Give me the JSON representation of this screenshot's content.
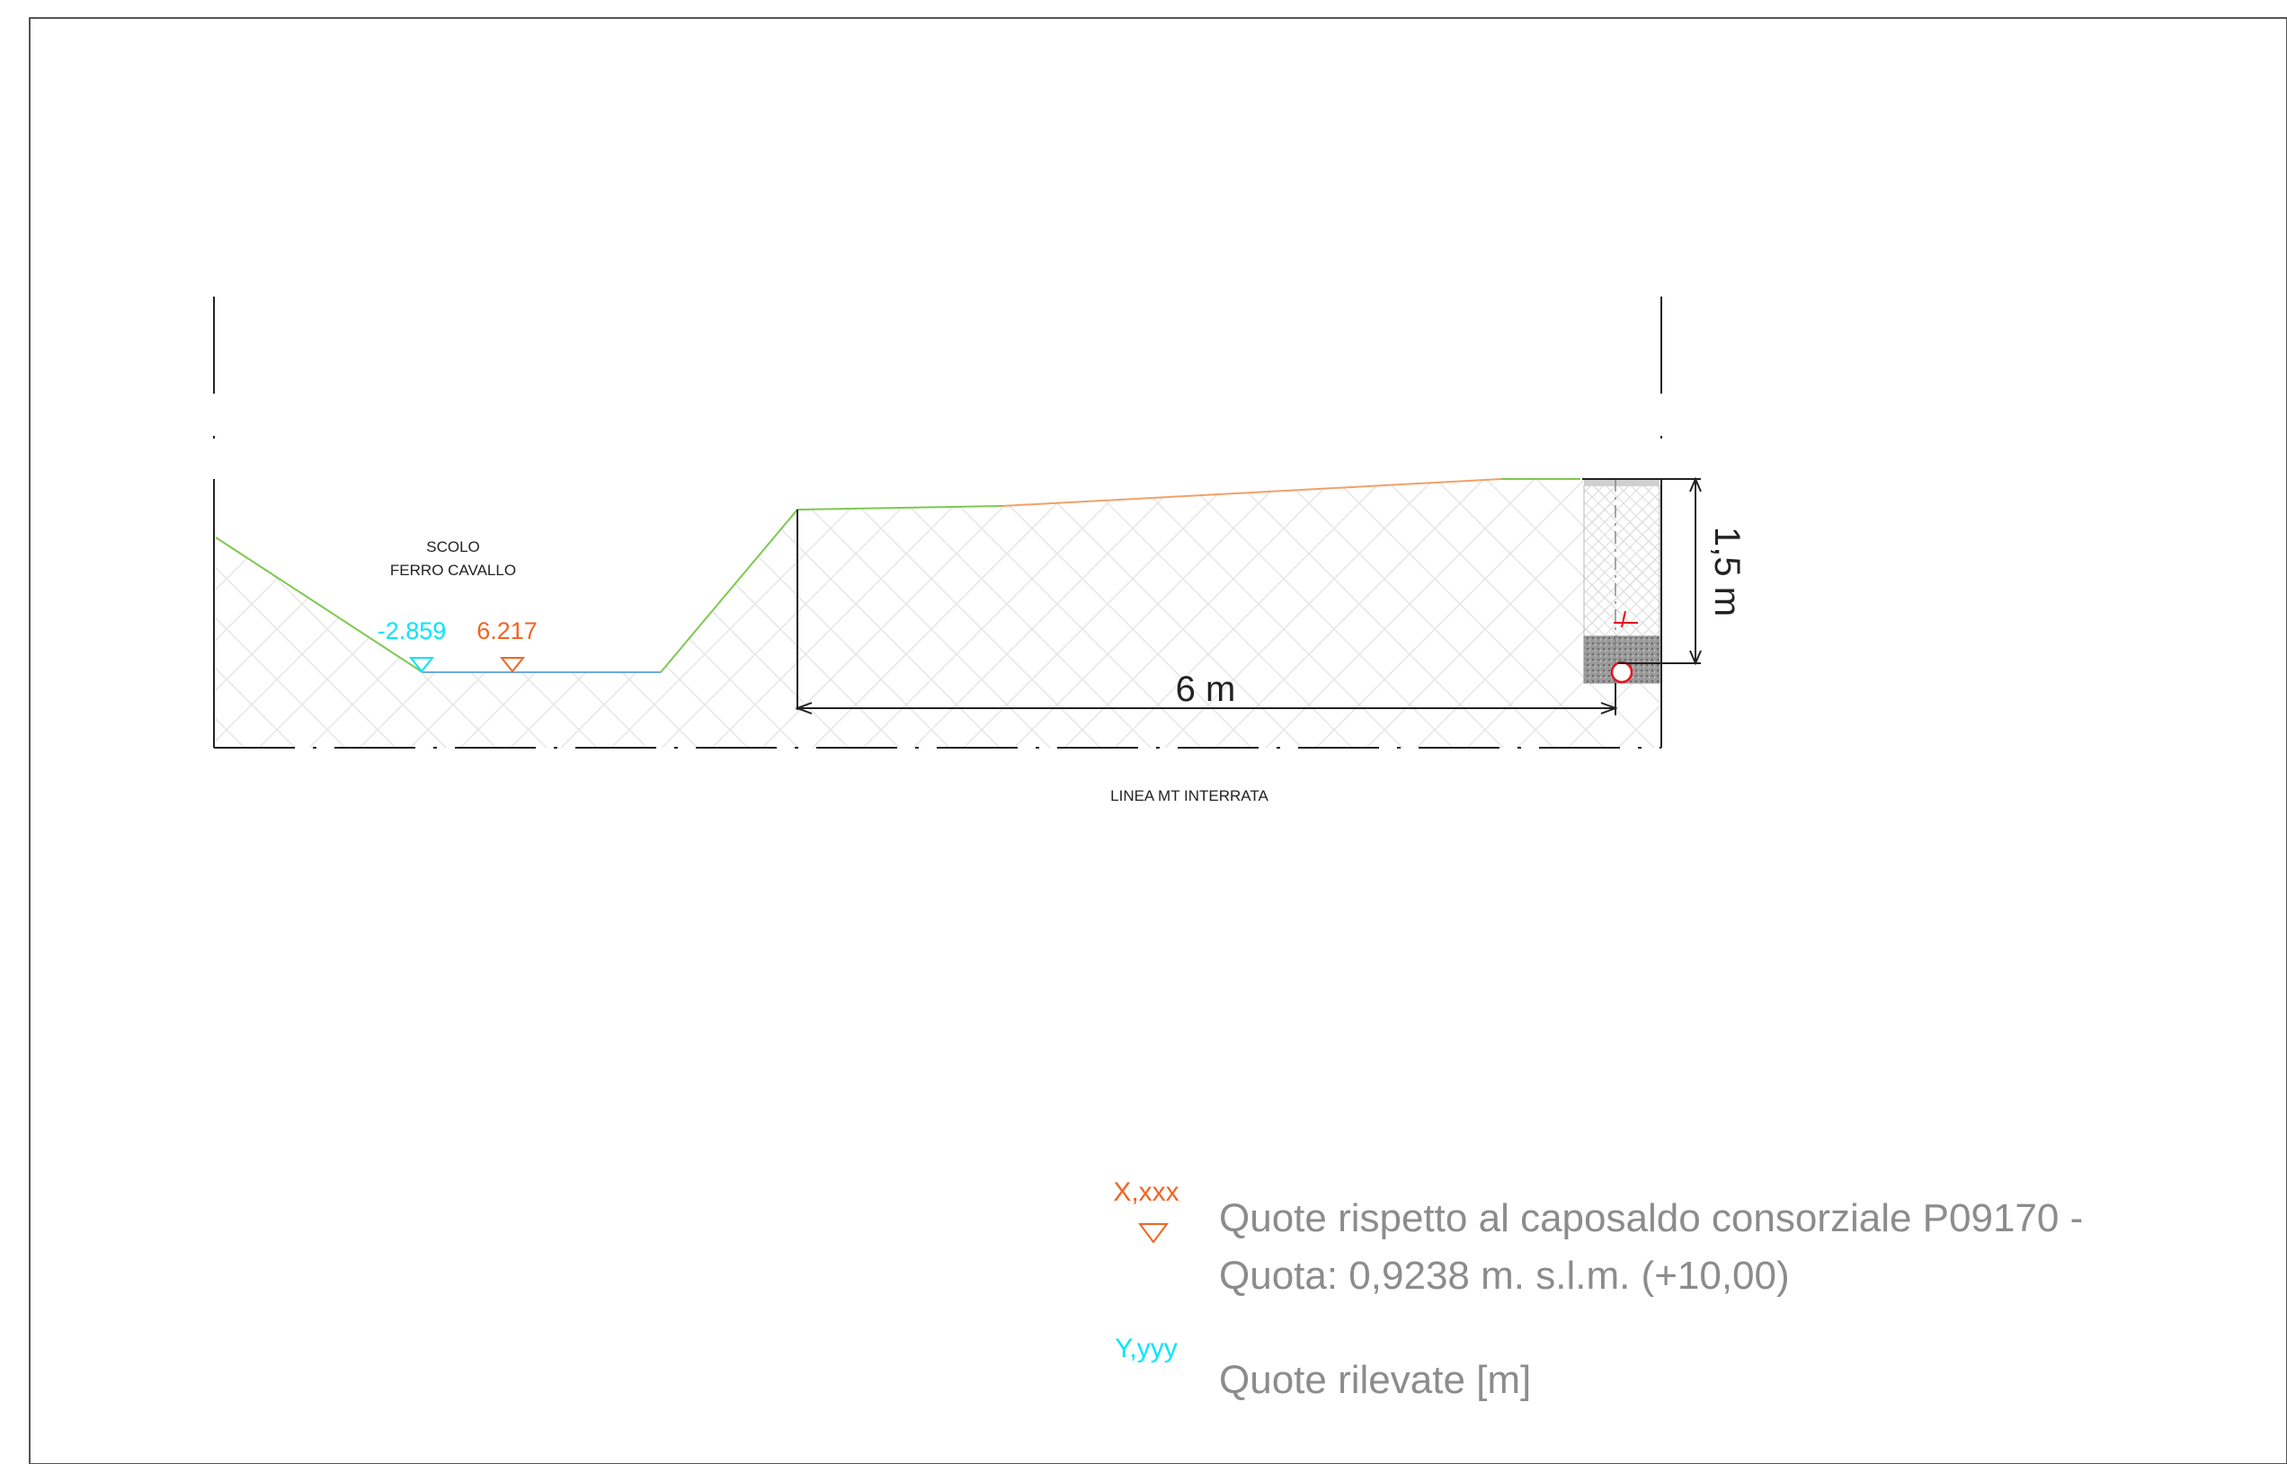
{
  "section": {
    "channel_label_line1": "SCOLO",
    "channel_label_line2": "FERRO CAVALLO",
    "elevation_relative": "-2.859",
    "elevation_absolute": "6.217",
    "width_dimension": "6 m",
    "depth_dimension": "1,5 m",
    "caption": "LINEA MT INTERRATA"
  },
  "legend": {
    "orange_symbol_text": "X,xxx",
    "orange_description_line1": "Quote rispetto al caposaldo consorziale P09170 -",
    "orange_description_line2": "Quota: 0,9238 m. s.l.m. (+10,00)",
    "cyan_symbol_text": "Y,yyy",
    "cyan_description": "Quote rilevate [m]"
  },
  "colors": {
    "orange": "#f26522",
    "cyan": "#00e5ff",
    "green": "#7ec850",
    "blue": "#6fa8e8",
    "grey_text": "#8c8c8c",
    "red": "#e0141e"
  }
}
